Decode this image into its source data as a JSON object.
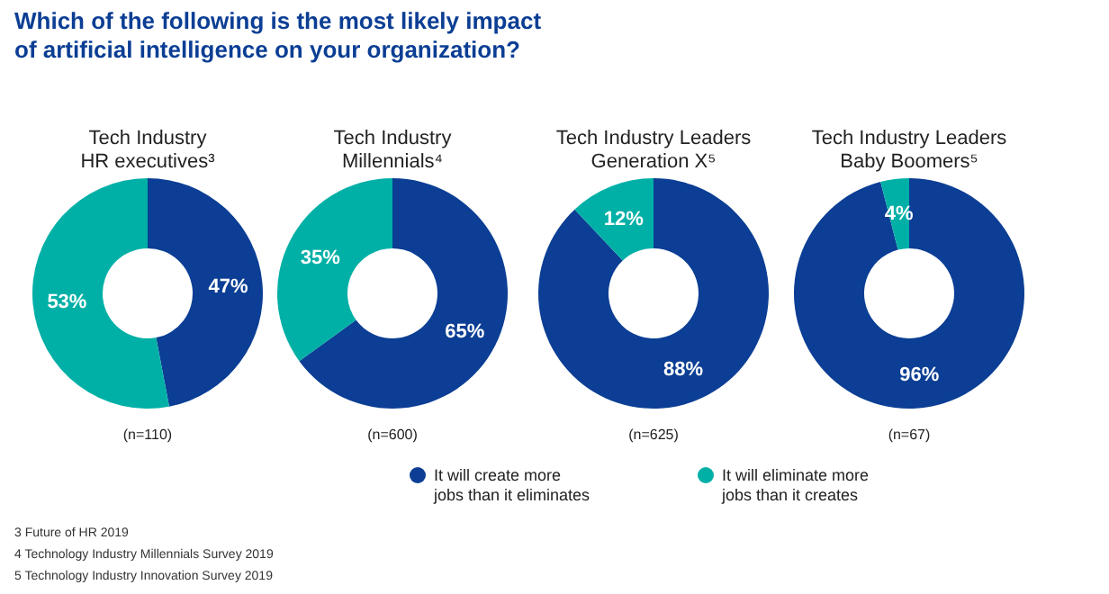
{
  "chart_data": [
    {
      "type": "donut",
      "title": "Tech Industry\nHR executives³",
      "xlabel": "(n=110)",
      "categories": [
        null,
        null
      ],
      "values": [
        47,
        53
      ],
      "value_labels": [
        "47%",
        "53%"
      ],
      "colors": [
        "#0b3e94",
        "#00b0a6"
      ],
      "annotations": [
        "Which of the following is the most likely impact\nof artificial intelligence on your organization?",
        "3 Future of HR 2019",
        "4 Technology Industry Millennials Survey 2019",
        "5 Technology Industry Innovation Survey 2019"
      ]
    },
    {
      "type": "donut",
      "title": "Tech Industry\nMillennials⁴",
      "xlabel": "(n=600)",
      "categories": [
        "It will create more\njobs than it eliminates",
        "It will eliminate more\njobs than it creates"
      ],
      "values": [
        65,
        35
      ],
      "value_labels": [
        "65%",
        "35%"
      ],
      "colors": [
        "#0b3e94",
        "#00b0a6"
      ],
      "legend": "bottom"
    },
    {
      "type": "donut",
      "title": "Tech Industry Leaders\nGeneration X⁵",
      "xlabel": "(n=625)",
      "categories": [
        null,
        null
      ],
      "values": [
        88,
        12
      ],
      "value_labels": [
        "88%",
        "12%"
      ],
      "colors": [
        "#0b3e94",
        "#00b0a6"
      ]
    },
    {
      "type": "donut",
      "title": "Tech Industry Leaders\nBaby Boomers⁵",
      "xlabel": "(n=67)",
      "categories": [
        null,
        null
      ],
      "values": [
        96,
        4
      ],
      "value_labels": [
        "96%",
        "4%"
      ],
      "colors": [
        "#0b3e94",
        "#00b0a6"
      ]
    }
  ]
}
